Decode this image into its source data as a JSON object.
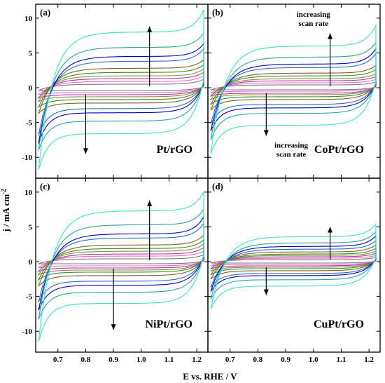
{
  "chart_data": {
    "type": "line",
    "xlabel": "E vs. RHE / V",
    "ylabel": "j / mA cm",
    "ylabel_sup": "-2",
    "xlim": [
      0.62,
      1.24
    ],
    "ylim": [
      -13,
      12
    ],
    "x_ticks": [
      "0.7",
      "0.8",
      "0.9",
      "1.0",
      "1.1",
      "1.2"
    ],
    "x_tick_values": [
      0.7,
      0.8,
      0.9,
      1.0,
      1.1,
      1.2
    ],
    "y_ticks": [
      "10",
      "5",
      "0",
      "-5",
      "-10"
    ],
    "y_tick_values": [
      10,
      5,
      0,
      -5,
      -10
    ],
    "series_colors": [
      "#7a7a7a",
      "#ff66cc",
      "#a040a0",
      "#9a8a3a",
      "#2f8f2f",
      "#8a5a20",
      "#2a6fbf",
      "#0000cc",
      "#2aa0a0",
      "#40e0c8"
    ],
    "panels": [
      {
        "letter": "(a)",
        "title": "Pt/rGO",
        "anodic_plateau": [
          0.5,
          0.9,
          1.3,
          1.7,
          2.2,
          2.8,
          3.8,
          4.5,
          5.8,
          8.0
        ],
        "cathodic_plateau": [
          -0.4,
          -0.7,
          -1.0,
          -1.3,
          -1.7,
          -2.2,
          -3.0,
          -3.6,
          -4.8,
          -6.6
        ],
        "anodic_end": [
          1.2,
          1.7,
          2.2,
          2.7,
          3.3,
          4.0,
          5.6,
          6.3,
          7.8,
          11.2
        ],
        "cathodic_start": [
          -0.4,
          -1.0,
          -1.5,
          -2.0,
          -2.8,
          -3.7,
          -6.8,
          -8.0,
          -9.0,
          -11.8
        ],
        "arrow_up": {
          "x": 1.03,
          "y_from": 0.2,
          "y_to": 8.8
        },
        "arrow_down": {
          "x": 0.8,
          "y_from": -1.0,
          "y_to": -9.5
        },
        "annotations": []
      },
      {
        "letter": "(b)",
        "title": "CoPt/rGO",
        "anodic_plateau": [
          0.4,
          0.7,
          1.0,
          1.3,
          1.7,
          2.1,
          2.9,
          3.4,
          4.4,
          6.0
        ],
        "cathodic_plateau": [
          -0.3,
          -0.5,
          -0.8,
          -1.0,
          -1.3,
          -1.7,
          -2.4,
          -2.9,
          -3.7,
          -5.4
        ],
        "anodic_end": [
          0.8,
          1.2,
          1.6,
          2.0,
          2.6,
          3.2,
          4.9,
          5.6,
          6.5,
          9.0
        ],
        "cathodic_start": [
          -0.3,
          -0.8,
          -1.2,
          -1.7,
          -2.4,
          -3.2,
          -5.2,
          -6.2,
          -7.5,
          -9.5
        ],
        "arrow_up": {
          "x": 1.06,
          "y_from": 0.2,
          "y_to": 7.8
        },
        "arrow_down": {
          "x": 0.83,
          "y_from": -0.8,
          "y_to": -6.9
        },
        "annotations": [
          {
            "lines": [
              "increasing",
              "scan rate"
            ],
            "x": 1.0,
            "y": 10.2
          },
          {
            "lines": [
              "increasing",
              "scan rate"
            ],
            "x": 0.92,
            "y": -8.6
          }
        ]
      },
      {
        "letter": "(c)",
        "title": "NiPt/rGO",
        "anodic_plateau": [
          0.4,
          0.8,
          1.1,
          1.5,
          1.9,
          2.4,
          3.4,
          4.0,
          5.3,
          7.3
        ],
        "cathodic_plateau": [
          -0.3,
          -0.6,
          -0.9,
          -1.2,
          -1.5,
          -2.0,
          -2.8,
          -3.4,
          -4.4,
          -6.0
        ],
        "anodic_end": [
          1.0,
          1.5,
          2.0,
          2.5,
          3.1,
          3.8,
          5.5,
          6.4,
          7.5,
          10.0
        ],
        "cathodic_start": [
          -0.3,
          -0.9,
          -1.4,
          -1.9,
          -2.6,
          -3.5,
          -5.8,
          -7.0,
          -8.3,
          -11.5
        ],
        "arrow_up": {
          "x": 1.03,
          "y_from": 0.2,
          "y_to": 8.8
        },
        "arrow_down": {
          "x": 0.9,
          "y_from": -1.0,
          "y_to": -9.8
        },
        "annotations": []
      },
      {
        "letter": "(d)",
        "title": "CuPt/rGO",
        "anodic_plateau": [
          0.3,
          0.5,
          0.7,
          0.9,
          1.1,
          1.4,
          1.8,
          2.2,
          2.7,
          3.6
        ],
        "cathodic_plateau": [
          -0.2,
          -0.4,
          -0.6,
          -0.8,
          -1.0,
          -1.3,
          -1.7,
          -2.0,
          -2.6,
          -3.5
        ],
        "anodic_end": [
          0.6,
          0.9,
          1.2,
          1.5,
          1.9,
          2.4,
          3.0,
          3.7,
          4.3,
          5.4
        ],
        "cathodic_start": [
          -0.2,
          -0.6,
          -1.0,
          -1.4,
          -1.9,
          -2.5,
          -3.7,
          -4.3,
          -5.4,
          -6.8
        ],
        "arrow_up": {
          "x": 1.06,
          "y_from": 0.3,
          "y_to": 5.0
        },
        "arrow_down": {
          "x": 0.83,
          "y_from": -0.8,
          "y_to": -4.8
        },
        "annotations": []
      }
    ]
  }
}
